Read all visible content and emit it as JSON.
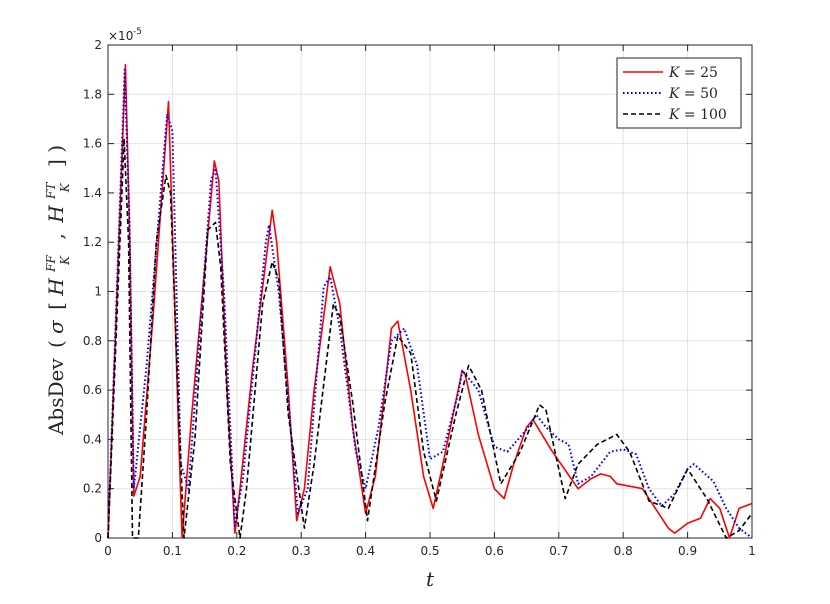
{
  "chart_data": {
    "type": "line",
    "xlabel": "t",
    "ylabel": "AbsDev (σ [H_K^{FF}, H_K^{FT}])",
    "ylabel_parts": {
      "prefix": "AbsDev",
      "open": "(",
      "sigma": "σ",
      "lbracket": "[",
      "h1": "H",
      "h1_sup": "FF",
      "h1_sub": "K",
      "comma": ",",
      "h2": "H",
      "h2_sup": "FT",
      "h2_sub": "K",
      "rbracket": "]",
      "close": ")"
    },
    "y_exponent_label": "×10",
    "y_exponent_power": "-5",
    "xlim": [
      0,
      1
    ],
    "ylim": [
      0,
      2
    ],
    "xticks": [
      0,
      0.1,
      0.2,
      0.3,
      0.4,
      0.5,
      0.6,
      0.7,
      0.8,
      0.9,
      1
    ],
    "xtick_labels": [
      "0",
      "0.1",
      "0.2",
      "0.3",
      "0.4",
      "0.5",
      "0.6",
      "0.7",
      "0.8",
      "0.9",
      "1"
    ],
    "yticks": [
      0,
      0.2,
      0.4,
      0.6,
      0.8,
      1,
      1.2,
      1.4,
      1.6,
      1.8,
      2
    ],
    "ytick_labels": [
      "0",
      "0.2",
      "0.4",
      "0.6",
      "0.8",
      "1",
      "1.2",
      "1.4",
      "1.6",
      "1.8",
      "2"
    ],
    "grid": true,
    "legend_position": "top-right",
    "series": [
      {
        "name": "K = 25",
        "legend_var": "K",
        "legend_eq": "= 25",
        "color": "#ff0000",
        "style": "solid",
        "x": [
          0,
          0.027,
          0.034,
          0.04,
          0.05,
          0.07,
          0.094,
          0.11,
          0.115,
          0.13,
          0.165,
          0.172,
          0.185,
          0.197,
          0.205,
          0.225,
          0.255,
          0.262,
          0.28,
          0.293,
          0.305,
          0.32,
          0.345,
          0.36,
          0.38,
          0.4,
          0.415,
          0.44,
          0.45,
          0.47,
          0.49,
          0.505,
          0.52,
          0.55,
          0.555,
          0.575,
          0.6,
          0.615,
          0.63,
          0.65,
          0.66,
          0.69,
          0.73,
          0.75,
          0.765,
          0.78,
          0.79,
          0.81,
          0.83,
          0.85,
          0.87,
          0.88,
          0.9,
          0.92,
          0.935,
          0.95,
          0.965,
          0.98,
          1.0
        ],
        "y": [
          0.0,
          1.92,
          1.2,
          0.17,
          0.25,
          0.9,
          1.77,
          0.4,
          0.0,
          0.5,
          1.53,
          1.45,
          0.6,
          0.02,
          0.2,
          0.7,
          1.33,
          1.2,
          0.6,
          0.07,
          0.2,
          0.6,
          1.1,
          0.95,
          0.45,
          0.1,
          0.25,
          0.85,
          0.88,
          0.6,
          0.25,
          0.12,
          0.3,
          0.68,
          0.66,
          0.42,
          0.2,
          0.16,
          0.3,
          0.45,
          0.48,
          0.35,
          0.2,
          0.24,
          0.26,
          0.25,
          0.22,
          0.21,
          0.2,
          0.12,
          0.04,
          0.02,
          0.06,
          0.08,
          0.16,
          0.12,
          0.0,
          0.12,
          0.14
        ]
      },
      {
        "name": "K = 50",
        "legend_var": "K",
        "legend_eq": "= 50",
        "color": "#0000ff",
        "style": "dotted",
        "x": [
          0,
          0.026,
          0.033,
          0.04,
          0.06,
          0.092,
          0.1,
          0.113,
          0.125,
          0.16,
          0.167,
          0.18,
          0.197,
          0.21,
          0.245,
          0.25,
          0.265,
          0.295,
          0.31,
          0.335,
          0.345,
          0.36,
          0.385,
          0.4,
          0.42,
          0.44,
          0.46,
          0.48,
          0.5,
          0.52,
          0.545,
          0.55,
          0.575,
          0.6,
          0.62,
          0.65,
          0.665,
          0.68,
          0.7,
          0.715,
          0.73,
          0.75,
          0.78,
          0.8,
          0.82,
          0.84,
          0.86,
          0.88,
          0.9,
          0.91,
          0.94,
          0.96,
          0.98,
          1.0
        ],
        "y": [
          0.0,
          1.9,
          1.3,
          0.2,
          0.7,
          1.72,
          1.65,
          0.3,
          0.2,
          1.45,
          1.5,
          1.0,
          0.05,
          0.25,
          1.2,
          1.27,
          1.0,
          0.1,
          0.2,
          1.02,
          1.06,
          0.85,
          0.35,
          0.2,
          0.45,
          0.8,
          0.85,
          0.7,
          0.32,
          0.35,
          0.6,
          0.68,
          0.6,
          0.37,
          0.35,
          0.44,
          0.5,
          0.45,
          0.4,
          0.38,
          0.22,
          0.25,
          0.35,
          0.36,
          0.34,
          0.2,
          0.13,
          0.18,
          0.28,
          0.3,
          0.23,
          0.12,
          0.04,
          0.0
        ]
      },
      {
        "name": "K = 100",
        "legend_var": "K",
        "legend_eq": "= 100",
        "color": "#000000",
        "style": "dashed",
        "x": [
          0.0,
          0.025,
          0.032,
          0.038,
          0.047,
          0.06,
          0.075,
          0.09,
          0.097,
          0.11,
          0.118,
          0.135,
          0.155,
          0.167,
          0.175,
          0.19,
          0.205,
          0.215,
          0.24,
          0.255,
          0.265,
          0.28,
          0.305,
          0.32,
          0.35,
          0.36,
          0.38,
          0.403,
          0.43,
          0.45,
          0.47,
          0.49,
          0.51,
          0.54,
          0.56,
          0.58,
          0.61,
          0.64,
          0.67,
          0.68,
          0.71,
          0.73,
          0.76,
          0.79,
          0.81,
          0.84,
          0.87,
          0.9,
          0.93,
          0.96,
          0.98,
          1.0
        ],
        "y": [
          0.0,
          1.62,
          1.2,
          0.0,
          0.0,
          0.5,
          1.2,
          1.47,
          1.4,
          0.5,
          0.0,
          0.4,
          1.25,
          1.28,
          1.1,
          0.3,
          0.0,
          0.2,
          0.95,
          1.12,
          1.05,
          0.5,
          0.04,
          0.3,
          0.95,
          0.9,
          0.55,
          0.07,
          0.55,
          0.82,
          0.75,
          0.35,
          0.15,
          0.5,
          0.7,
          0.6,
          0.22,
          0.35,
          0.54,
          0.52,
          0.16,
          0.3,
          0.38,
          0.42,
          0.35,
          0.15,
          0.12,
          0.28,
          0.16,
          0.0,
          0.03,
          0.1
        ]
      }
    ]
  }
}
